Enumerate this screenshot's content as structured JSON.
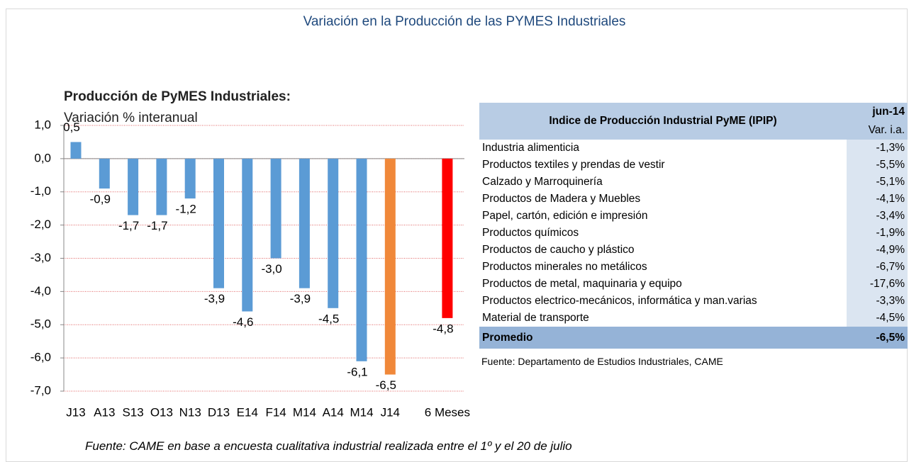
{
  "title": "Variación en la Producción de las PYMES Industriales",
  "chart_data": {
    "type": "bar",
    "title": "Producción de PyMES Industriales:",
    "subtitle": "Variación % interanual",
    "categories": [
      "J13",
      "A13",
      "S13",
      "O13",
      "N13",
      "D13",
      "E14",
      "F14",
      "M14",
      "A14",
      "M14",
      "J14",
      "6 Meses"
    ],
    "values": [
      0.5,
      -0.9,
      -1.7,
      -1.7,
      -1.2,
      -3.9,
      -4.6,
      -3.0,
      -3.9,
      -4.5,
      -6.1,
      -6.5,
      -4.8
    ],
    "value_labels": [
      "0,5",
      "-0,9",
      "-1,7",
      "-1,7",
      "-1,2",
      "-3,9",
      "-4,6",
      "-3,0",
      "-3,9",
      "-4,5",
      "-6,1",
      "-6,5",
      "-4,8"
    ],
    "colors": [
      "#5b9bd5",
      "#5b9bd5",
      "#5b9bd5",
      "#5b9bd5",
      "#5b9bd5",
      "#5b9bd5",
      "#5b9bd5",
      "#5b9bd5",
      "#5b9bd5",
      "#5b9bd5",
      "#5b9bd5",
      "#f0883a",
      "#ff0000"
    ],
    "ylim": [
      -7,
      1
    ],
    "yticks": [
      {
        "value": 1,
        "label": "1,0"
      },
      {
        "value": 0,
        "label": "0,0"
      },
      {
        "value": -1,
        "label": "-1,0"
      },
      {
        "value": -2,
        "label": "-2,0"
      },
      {
        "value": -3,
        "label": "-3,0"
      },
      {
        "value": -4,
        "label": "-4,0"
      },
      {
        "value": -5,
        "label": "-5,0"
      },
      {
        "value": -6,
        "label": "-6,0"
      },
      {
        "value": -7,
        "label": "-7,0"
      }
    ],
    "grid": true
  },
  "table": {
    "header": "Indice de Producción Industrial PyME (IPIP)",
    "period": "jun-14",
    "unit": "Var. i.a.",
    "rows": [
      [
        "Industria alimenticia",
        "-1,3%"
      ],
      [
        "Productos textiles y prendas de vestir",
        "-5,5%"
      ],
      [
        "Calzado y Marroquinería",
        "-5,1%"
      ],
      [
        "Productos de Madera y Muebles",
        "-4,1%"
      ],
      [
        "Papel, cartón, edición e impresión",
        "-3,4%"
      ],
      [
        "Productos químicos",
        "-1,9%"
      ],
      [
        "Productos de caucho y plástico",
        "-4,9%"
      ],
      [
        "Productos minerales no metálicos",
        "-6,7%"
      ],
      [
        "Productos de metal, maquinaria y equipo",
        "-17,6%"
      ],
      [
        "Productos electrico-mecánicos, informática y man.varias",
        "-3,3%"
      ],
      [
        "Material de transporte",
        "-4,5%"
      ]
    ],
    "total": [
      "Promedio",
      "-6,5%"
    ],
    "source": "Fuente: Departamento de Estudios Industriales, CAME"
  },
  "footnote": "Fuente: CAME en base a encuesta cualitativa industrial realizada entre el 1º y el 20 de julio"
}
